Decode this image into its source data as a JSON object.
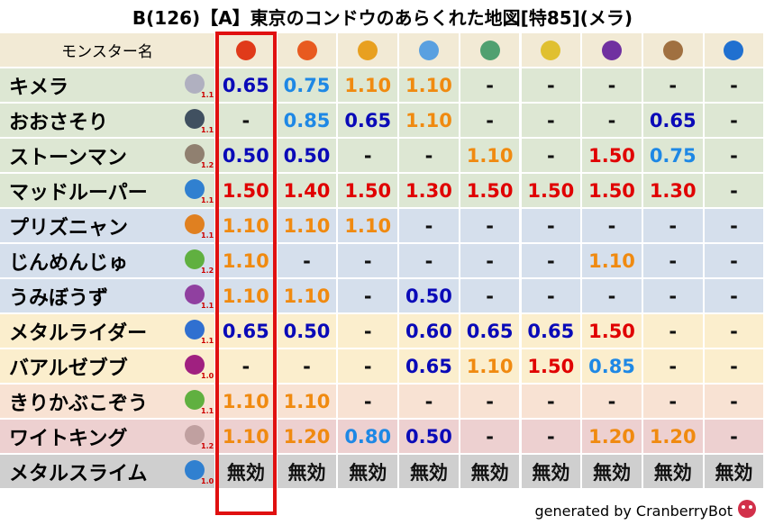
{
  "title": "B(126)【A】東京のコンドウのあらくれた地図[特85](メラ)",
  "table": {
    "header": "モンスター名",
    "rows": [
      {
        "name": "キメラ",
        "mult": "1.1",
        "cells": [
          "0.65",
          "0.75",
          "1.10",
          "1.10",
          "-",
          "-",
          "-",
          "-",
          "-"
        ]
      },
      {
        "name": "おおさそり",
        "mult": "1.1",
        "cells": [
          "-",
          "0.85",
          "0.65",
          "1.10",
          "-",
          "-",
          "-",
          "0.65",
          "-"
        ]
      },
      {
        "name": "ストーンマン",
        "mult": "1.2",
        "cells": [
          "0.50",
          "0.50",
          "-",
          "-",
          "1.10",
          "-",
          "1.50",
          "0.75",
          "-"
        ]
      },
      {
        "name": "マッドルーパー",
        "mult": "1.1",
        "cells": [
          "1.50",
          "1.40",
          "1.50",
          "1.30",
          "1.50",
          "1.50",
          "1.50",
          "1.30",
          "-"
        ]
      },
      {
        "name": "プリズニャン",
        "mult": "1.1",
        "cells": [
          "1.10",
          "1.10",
          "1.10",
          "-",
          "-",
          "-",
          "-",
          "-",
          "-"
        ]
      },
      {
        "name": "じんめんじゅ",
        "mult": "1.2",
        "cells": [
          "1.10",
          "-",
          "-",
          "-",
          "-",
          "-",
          "1.10",
          "-",
          "-"
        ]
      },
      {
        "name": "うみぼうず",
        "mult": "1.1",
        "cells": [
          "1.10",
          "1.10",
          "-",
          "0.50",
          "-",
          "-",
          "-",
          "-",
          "-"
        ]
      },
      {
        "name": "メタルライダー",
        "mult": "1.1",
        "cells": [
          "0.65",
          "0.50",
          "-",
          "0.60",
          "0.65",
          "0.65",
          "1.50",
          "-",
          "-"
        ]
      },
      {
        "name": "バアルゼブブ",
        "mult": "1.0",
        "cells": [
          "-",
          "-",
          "-",
          "0.65",
          "1.10",
          "1.50",
          "0.85",
          "-",
          "-"
        ]
      },
      {
        "name": "きりかぶこぞう",
        "mult": "1.1",
        "cells": [
          "1.10",
          "1.10",
          "-",
          "-",
          "-",
          "-",
          "-",
          "-",
          "-"
        ]
      },
      {
        "name": "ワイトキング",
        "mult": "1.2",
        "cells": [
          "1.10",
          "1.20",
          "0.80",
          "0.50",
          "-",
          "-",
          "1.20",
          "1.20",
          "-"
        ]
      },
      {
        "name": "メタルスライム",
        "mult": "1.0",
        "cells": [
          "無効",
          "無効",
          "無効",
          "無効",
          "無効",
          "無効",
          "無効",
          "無効",
          "無効"
        ]
      }
    ]
  },
  "footer": "generated by CranberryBot"
}
